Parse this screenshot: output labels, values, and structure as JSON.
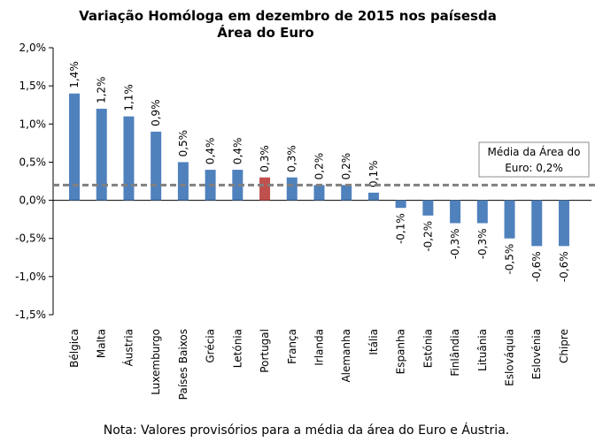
{
  "chart_data": {
    "type": "bar",
    "title_line1": "Variação Homóloga em dezembro de 2015 nos paísesda",
    "title_line2": "Área do Euro",
    "categories": [
      "Bélgica",
      "Malta",
      "Áustria",
      "Luxemburgo",
      "Países Baixos",
      "Grécia",
      "Letónia",
      "Portugal",
      "França",
      "Irlanda",
      "Alemanha",
      "Itália",
      "Espanha",
      "Estónia",
      "Finlândia",
      "Lituânia",
      "Eslováquia",
      "Eslovénia",
      "Chipre"
    ],
    "values": [
      1.4,
      1.2,
      1.1,
      0.9,
      0.5,
      0.4,
      0.4,
      0.3,
      0.3,
      0.2,
      0.2,
      0.1,
      -0.1,
      -0.2,
      -0.3,
      -0.3,
      -0.5,
      -0.6,
      -0.6
    ],
    "labels": [
      "1,4%",
      "1,2%",
      "1,1%",
      "0,9%",
      "0,5%",
      "0,4%",
      "0,4%",
      "0,3%",
      "0,3%",
      "0,2%",
      "0,2%",
      "0,1%",
      "-0,1%",
      "-0,2%",
      "-0,3%",
      "-0,3%",
      "-0,5%",
      "-0,6%",
      "-0,6%"
    ],
    "highlight_category": "Portugal",
    "ylim": [
      -1.5,
      2.0
    ],
    "yticks": [
      2.0,
      1.5,
      1.0,
      0.5,
      0.0,
      -0.5,
      -1.0,
      -1.5
    ],
    "ytick_labels": [
      "2,0%",
      "1,5%",
      "1,0%",
      "0,5%",
      "0,0%",
      "-0,5%",
      "-1,0%",
      "-1,5%"
    ],
    "reference_line": {
      "value": 0.2,
      "label_line1": "Média da Área do",
      "label_line2": "Euro: 0,2%"
    },
    "colors": {
      "bar": "#4f81bd",
      "highlight": "#c0504d",
      "reference": "#808080"
    },
    "note": "Nota: Valores provisórios para a média da área do Euro e Áustria."
  }
}
